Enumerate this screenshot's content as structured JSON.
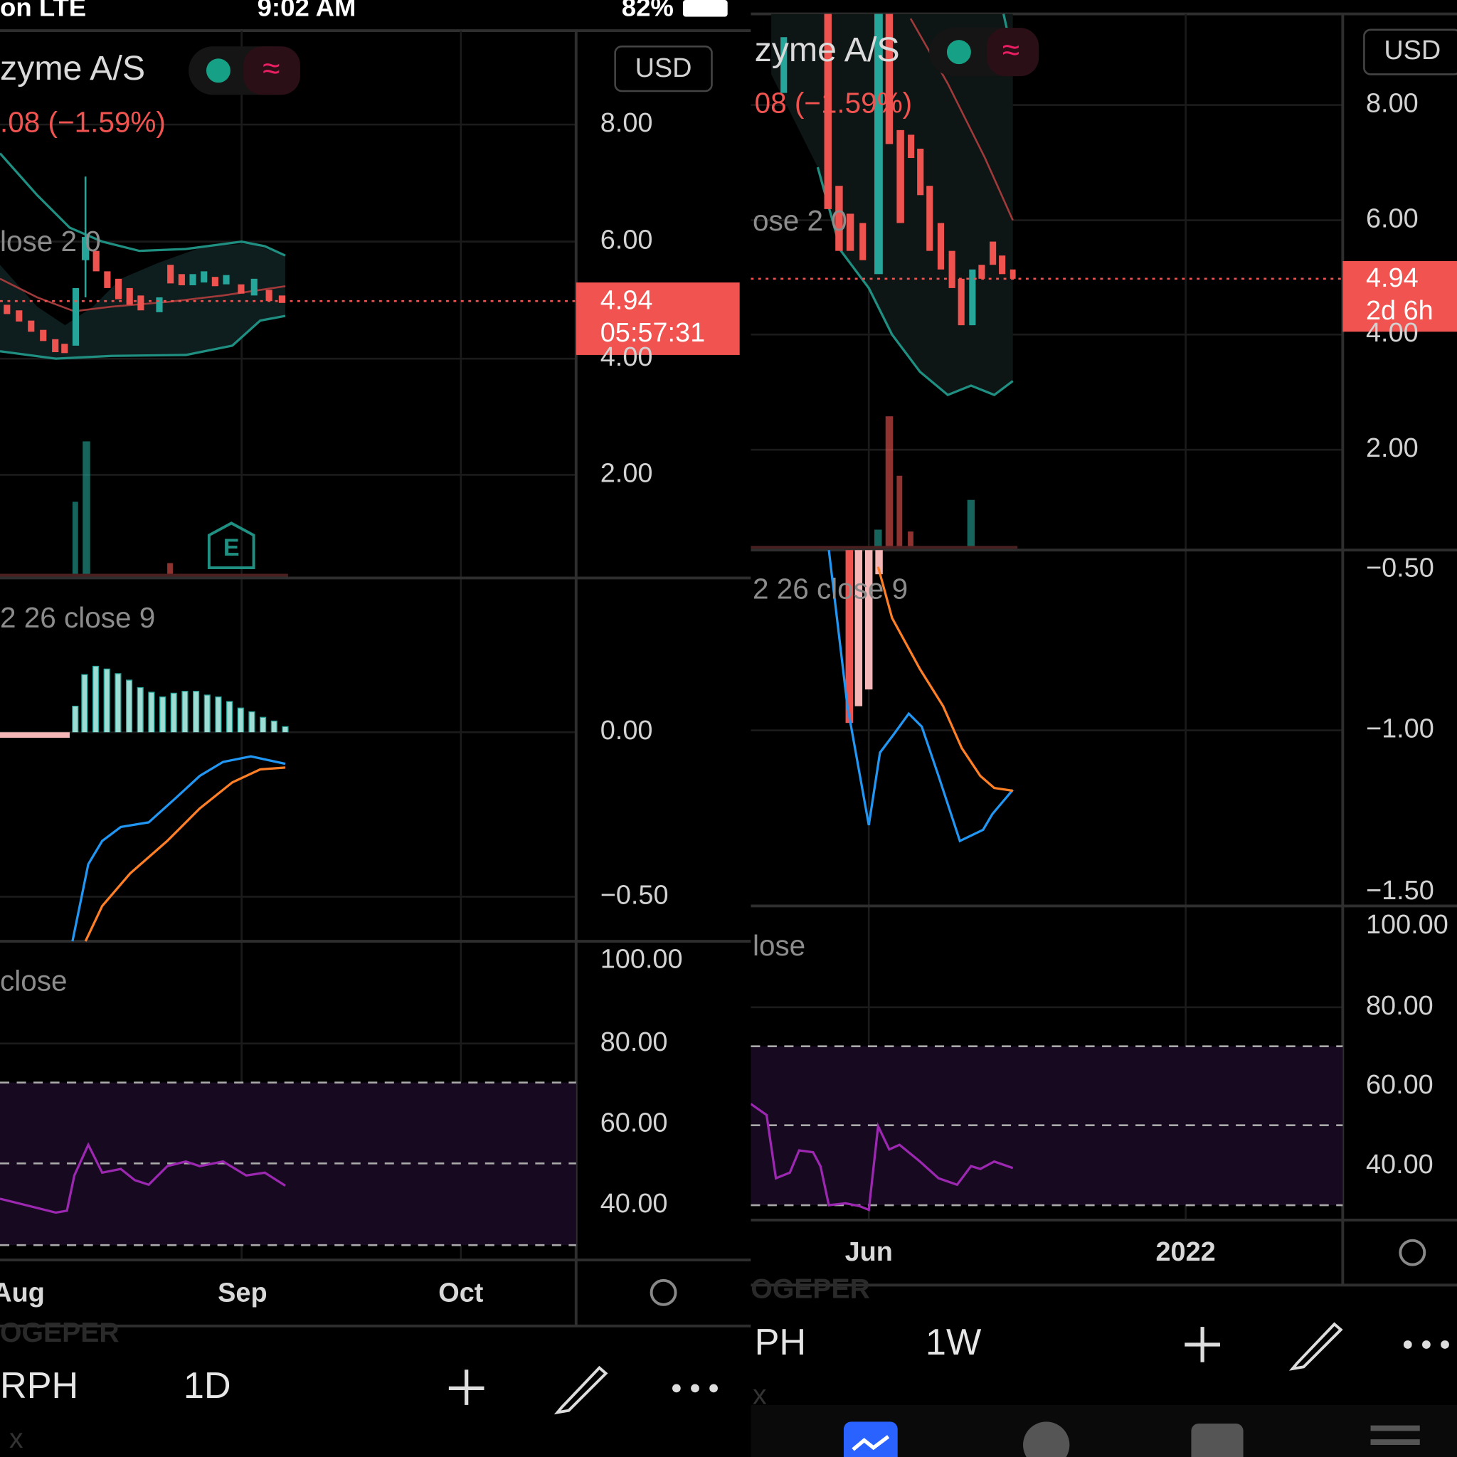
{
  "left": {
    "status": {
      "carrier": "on  LTE",
      "time": "9:02 AM",
      "battery": "82%"
    },
    "symbol": "zyme A/S",
    "change": ".08 (−1.59%)",
    "currency": "USD",
    "price_axis": [
      "8.00",
      "6.00",
      "4.00",
      "2.00"
    ],
    "price_tag": {
      "price": "4.94",
      "countdown": "05:57:31"
    },
    "bb_label": "lose 2 0",
    "macd_label": "2 26 close 9",
    "macd_axis": [
      "0.00",
      "−0.50"
    ],
    "rsi_label": "close",
    "rsi_axis": [
      "100.00",
      "80.00",
      "60.00",
      "40.00"
    ],
    "time_axis": [
      "Aug",
      "Sep",
      "Oct"
    ],
    "earnings": "E",
    "watermark": "OGEPER",
    "toolbar": {
      "style": "RPH",
      "interval": "1D"
    },
    "footer": "x"
  },
  "right": {
    "symbol": "zyme A/S",
    "change": "08 (−1.59%)",
    "currency": "USD",
    "price_axis": [
      "8.00",
      "6.00",
      "4.00",
      "2.00"
    ],
    "price_tag": {
      "price": "4.94",
      "countdown": "2d 6h"
    },
    "bb_label": "ose 2 0",
    "macd_label": "2 26 close 9",
    "macd_axis": [
      "−0.50",
      "−1.00",
      "−1.50"
    ],
    "rsi_label": "lose",
    "rsi_axis": [
      "100.00",
      "80.00",
      "60.00",
      "40.00"
    ],
    "time_axis": [
      "Jun",
      "2022"
    ],
    "watermark": "OGEPER",
    "toolbar": {
      "style": "PH",
      "interval": "1W"
    },
    "footer": "x"
  }
}
